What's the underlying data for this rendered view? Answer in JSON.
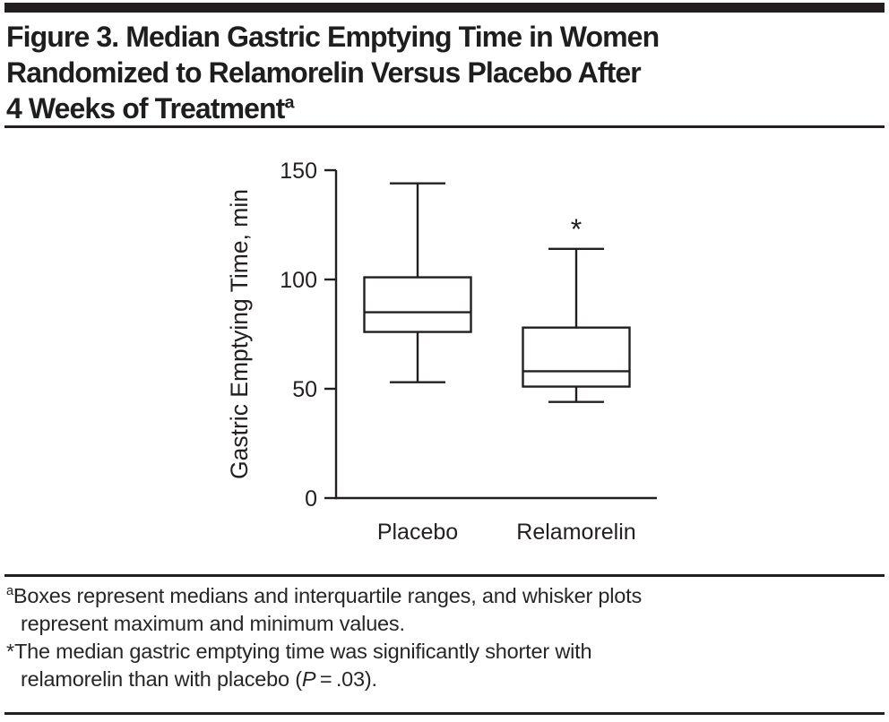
{
  "title": {
    "line1": "Figure 3. Median Gastric Emptying Time in Women",
    "line2": "Randomized to Relamorelin Versus Placebo After",
    "line3": "4 Weeks of Treatment",
    "superscript": "a"
  },
  "colors": {
    "ink": "#231F20",
    "background": "#FFFFFF"
  },
  "chart_data": {
    "type": "box",
    "title": "",
    "ylabel": "Gastric Emptying Time, min",
    "xlabel": "",
    "ylim": [
      0,
      150
    ],
    "yticks": [
      0,
      50,
      100,
      150
    ],
    "grid": false,
    "legend": "none",
    "categories": [
      "Placebo",
      "Relamorelin"
    ],
    "series": [
      {
        "name": "Placebo",
        "min": 53,
        "q1": 76,
        "median": 85,
        "q3": 101,
        "max": 144,
        "annotation": ""
      },
      {
        "name": "Relamorelin",
        "min": 44,
        "q1": 51,
        "median": 58,
        "q3": 78,
        "max": 114,
        "annotation": "*"
      }
    ]
  },
  "footnotes": {
    "note_a": {
      "marker": "a",
      "line1": "Boxes represent medians and interquartile ranges, and whisker plots",
      "line2": "represent maximum and minimum values."
    },
    "note_star": {
      "marker": "*",
      "line1": "The median gastric emptying time was significantly shorter with",
      "line2_prefix": "relamorelin than with placebo (",
      "p_symbol": "P",
      "line2_suffix": " = .03)."
    }
  }
}
